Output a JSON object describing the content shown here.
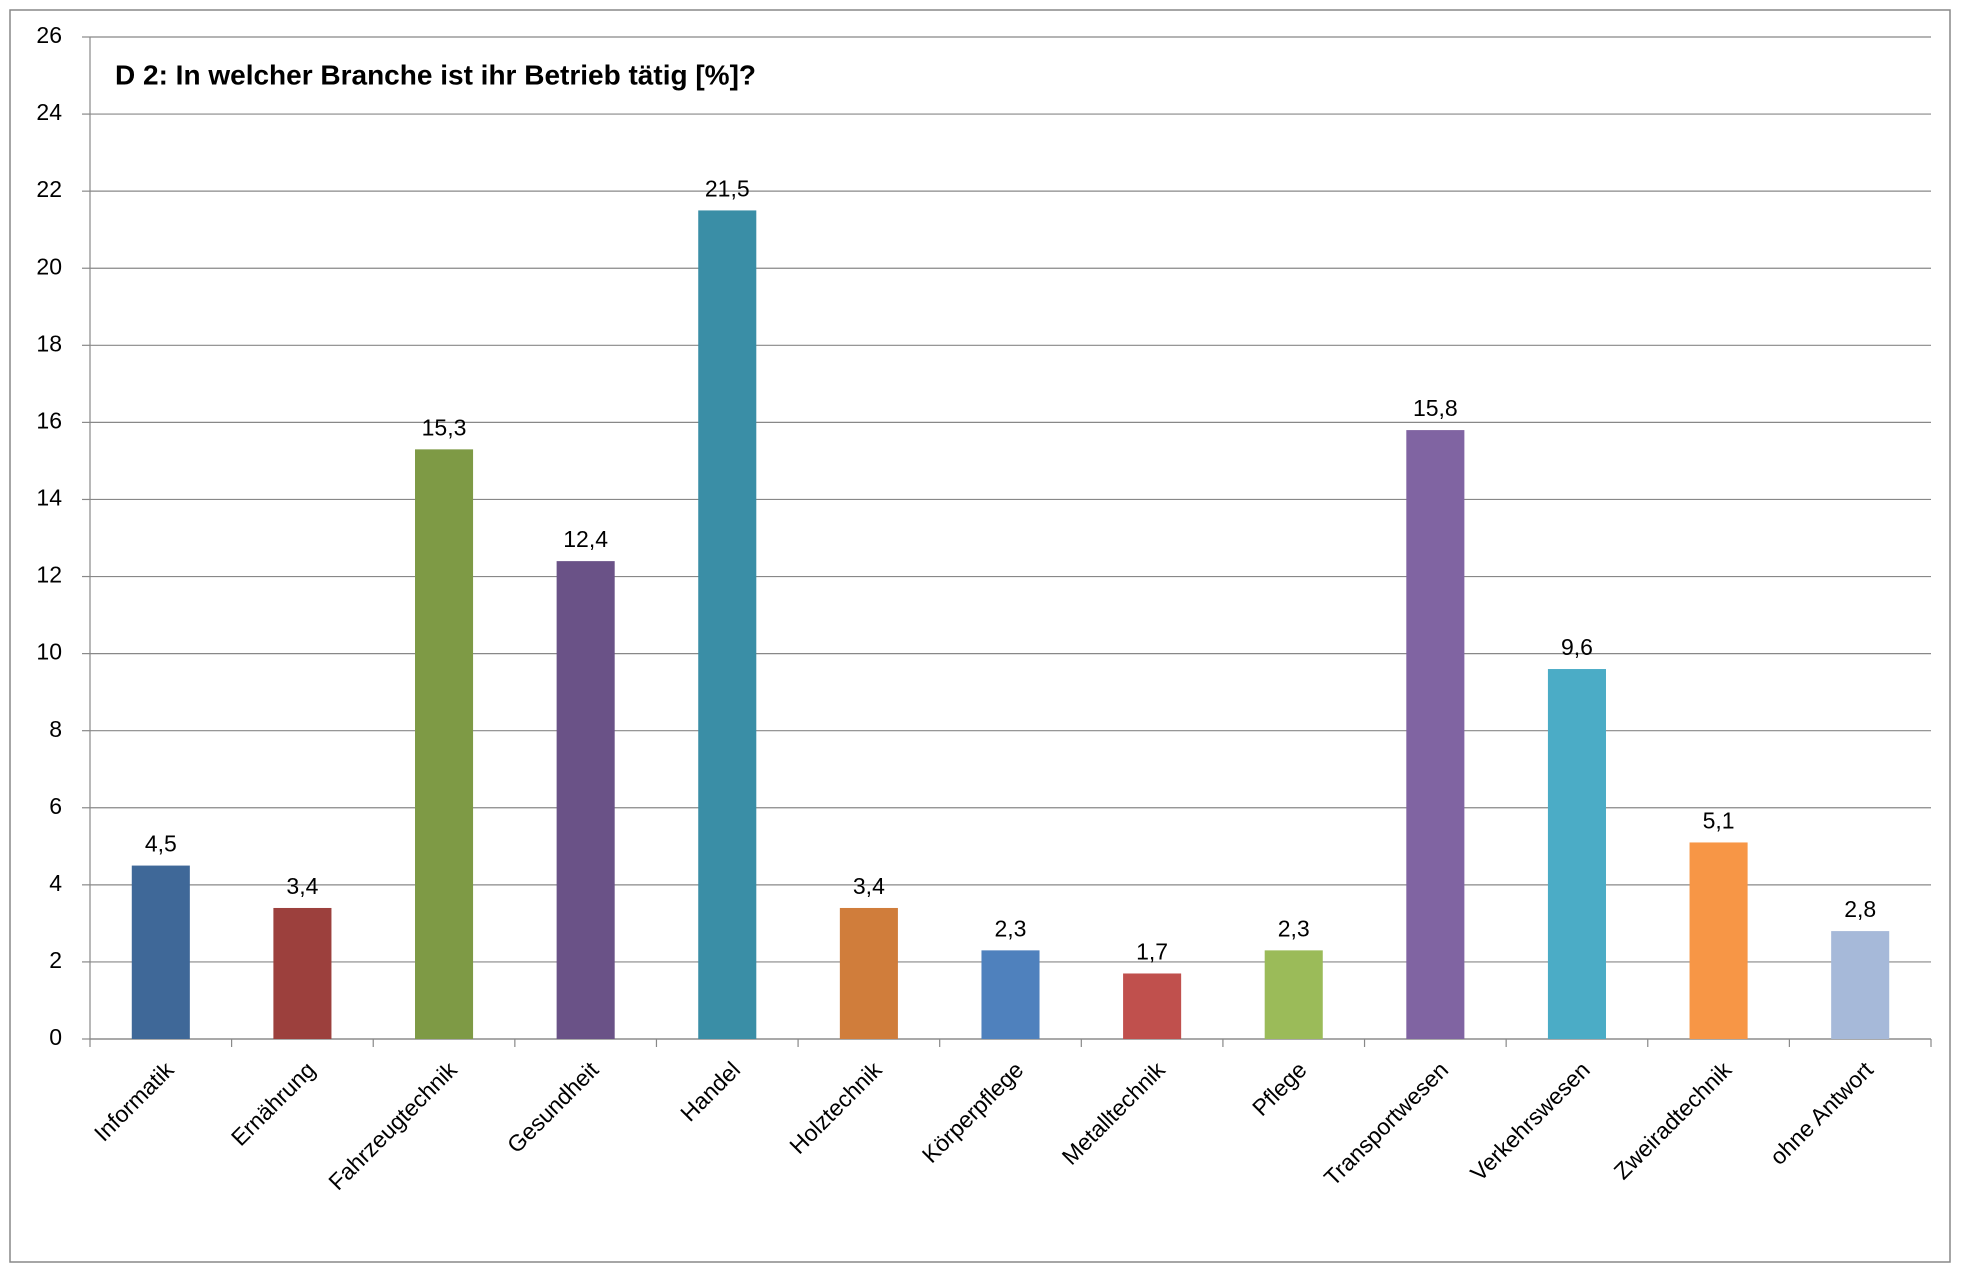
{
  "chart_data": {
    "type": "bar",
    "title": "D 2: In welcher Branche ist ihr Betrieb tätig [%]?",
    "categories": [
      "Informatik",
      "Ernährung",
      "Fahrzeugtechnik",
      "Gesundheit",
      "Handel",
      "Holztechnik",
      "Körperpflege",
      "Metalltechnik",
      "Pflege",
      "Transportwesen",
      "Verkehrswesen",
      "Zweiradtechnik",
      "ohne Antwort"
    ],
    "values": [
      4.5,
      3.4,
      15.3,
      12.4,
      21.5,
      3.4,
      2.3,
      1.7,
      2.3,
      15.8,
      9.6,
      5.1,
      2.8
    ],
    "value_labels": [
      "4,5",
      "3,4",
      "15,3",
      "12,4",
      "21,5",
      "3,4",
      "2,3",
      "1,7",
      "2,3",
      "15,8",
      "9,6",
      "5,1",
      "2,8"
    ],
    "colors": [
      "#3f6898",
      "#9c403d",
      "#7e9a45",
      "#6a5287",
      "#3a8ea6",
      "#d07d3b",
      "#4f81bd",
      "#c0504d",
      "#9bbb59",
      "#8064a2",
      "#4bacc6",
      "#f79646",
      "#a6b9d9"
    ],
    "ylim": [
      0,
      26
    ],
    "yticks": [
      0,
      2,
      4,
      6,
      8,
      10,
      12,
      14,
      16,
      18,
      20,
      22,
      24,
      26
    ],
    "grid": true
  }
}
